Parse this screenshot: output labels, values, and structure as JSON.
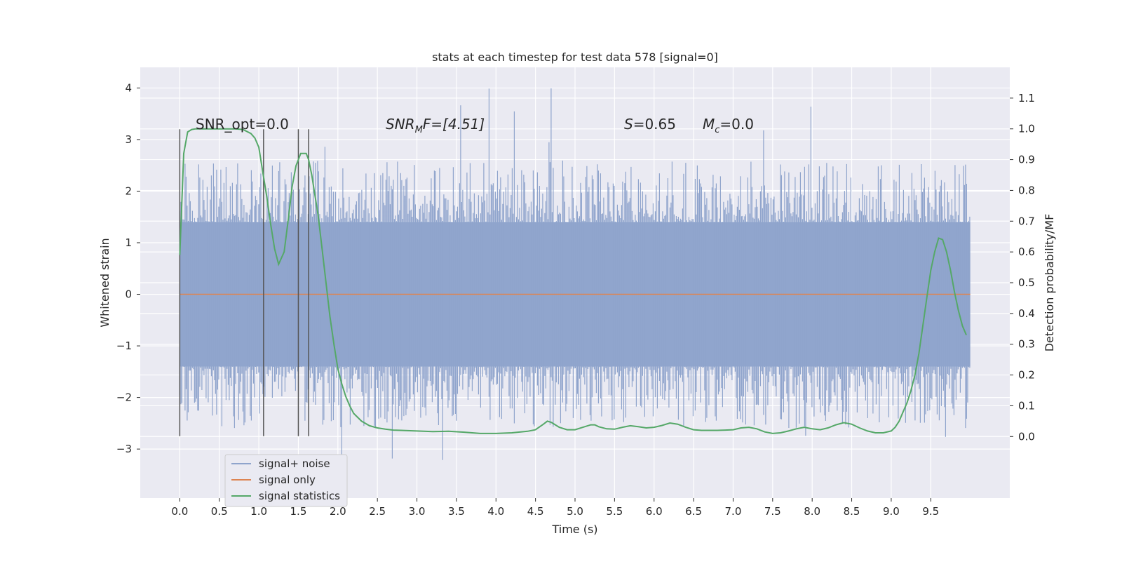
{
  "chart_data": {
    "type": "line",
    "title": "stats at each timestep for test data 578 [signal=0]",
    "xlabel": "Time (s)",
    "ylabel": "Whitened strain",
    "ylabel_right": "Detection probability/MF",
    "xlim": [
      -0.5,
      10.5
    ],
    "ylim": [
      -3.95,
      4.4
    ],
    "ylim_right": [
      -0.2,
      1.2
    ],
    "xticks": [
      0.0,
      0.5,
      1.0,
      1.5,
      2.0,
      2.5,
      3.0,
      3.5,
      4.0,
      4.5,
      5.0,
      5.5,
      6.0,
      6.5,
      7.0,
      7.5,
      8.0,
      8.5,
      9.0,
      9.5
    ],
    "yticks": [
      -3,
      -2,
      -1,
      0,
      1,
      2,
      3,
      4
    ],
    "yticks_right": [
      0.0,
      0.1,
      0.2,
      0.3,
      0.4,
      0.5,
      0.6,
      0.7,
      0.8,
      0.9,
      1.0,
      1.1
    ],
    "grid": true,
    "legend_placement": "lower-left",
    "annotations": {
      "snr_opt": "SNR_opt=0.0",
      "snr_mf_prefix": "SNR",
      "snr_mf_sub": "M",
      "snr_mf_suffix": "F=[4.51]",
      "s_var": "S",
      "s_value": "=0.65",
      "mc_var": "M",
      "mc_sub": "c",
      "mc_value": "=0.0"
    },
    "vertical_markers_x": [
      0.0,
      1.06,
      1.5,
      1.63
    ],
    "vertical_markers_yrange": [
      -2.75,
      3.2
    ],
    "series": [
      {
        "name": "signal+ noise",
        "color": "#8fa4cc",
        "axis": "left",
        "style": "dense noise",
        "x_range": [
          0.0,
          10.0
        ],
        "core_band": [
          -1.4,
          1.4
        ],
        "typical_peaks": [
          -2.6,
          2.6
        ],
        "extreme_peaks": [
          -3.6,
          4.05
        ]
      },
      {
        "name": "signal only",
        "color": "#dd8452",
        "axis": "left",
        "x": [
          0.0,
          10.0
        ],
        "y": [
          0.0,
          0.0
        ]
      },
      {
        "name": "signal statistics",
        "color": "#55a868",
        "axis": "right",
        "x": [
          0.0,
          0.05,
          0.1,
          0.15,
          0.2,
          0.3,
          0.4,
          0.5,
          0.6,
          0.7,
          0.8,
          0.9,
          0.95,
          1.0,
          1.05,
          1.1,
          1.15,
          1.2,
          1.25,
          1.32,
          1.38,
          1.42,
          1.47,
          1.5,
          1.53,
          1.57,
          1.6,
          1.63,
          1.67,
          1.7,
          1.75,
          1.8,
          1.85,
          1.9,
          1.95,
          2.0,
          2.05,
          2.1,
          2.15,
          2.2,
          2.3,
          2.4,
          2.5,
          2.6,
          2.7,
          2.8,
          3.0,
          3.2,
          3.4,
          3.6,
          3.8,
          4.0,
          4.2,
          4.4,
          4.5,
          4.6,
          4.65,
          4.7,
          4.8,
          4.9,
          5.0,
          5.1,
          5.2,
          5.25,
          5.3,
          5.4,
          5.5,
          5.6,
          5.7,
          5.8,
          5.9,
          6.0,
          6.1,
          6.2,
          6.3,
          6.4,
          6.5,
          6.6,
          6.7,
          6.8,
          6.9,
          7.0,
          7.1,
          7.2,
          7.3,
          7.4,
          7.5,
          7.6,
          7.7,
          7.8,
          7.9,
          8.0,
          8.1,
          8.2,
          8.3,
          8.4,
          8.5,
          8.6,
          8.7,
          8.8,
          8.9,
          9.0,
          9.05,
          9.1,
          9.15,
          9.2,
          9.25,
          9.3,
          9.35,
          9.4,
          9.45,
          9.5,
          9.55,
          9.6,
          9.65,
          9.7,
          9.75,
          9.8,
          9.85,
          9.9,
          9.95
        ],
        "y": [
          0.59,
          0.92,
          0.99,
          0.998,
          1.0,
          1.0,
          1.0,
          1.0,
          1.0,
          1.0,
          0.998,
          0.985,
          0.97,
          0.94,
          0.86,
          0.78,
          0.69,
          0.61,
          0.56,
          0.6,
          0.72,
          0.81,
          0.88,
          0.9,
          0.92,
          0.92,
          0.92,
          0.9,
          0.85,
          0.8,
          0.72,
          0.61,
          0.5,
          0.39,
          0.3,
          0.22,
          0.17,
          0.13,
          0.1,
          0.075,
          0.05,
          0.035,
          0.028,
          0.024,
          0.021,
          0.02,
          0.018,
          0.016,
          0.017,
          0.014,
          0.01,
          0.01,
          0.012,
          0.017,
          0.022,
          0.04,
          0.05,
          0.046,
          0.03,
          0.022,
          0.022,
          0.03,
          0.038,
          0.038,
          0.032,
          0.025,
          0.024,
          0.03,
          0.035,
          0.032,
          0.028,
          0.03,
          0.036,
          0.044,
          0.04,
          0.03,
          0.022,
          0.02,
          0.02,
          0.02,
          0.021,
          0.022,
          0.028,
          0.03,
          0.025,
          0.015,
          0.01,
          0.012,
          0.018,
          0.025,
          0.03,
          0.025,
          0.022,
          0.028,
          0.038,
          0.045,
          0.04,
          0.028,
          0.018,
          0.012,
          0.012,
          0.018,
          0.03,
          0.05,
          0.08,
          0.11,
          0.15,
          0.2,
          0.27,
          0.36,
          0.45,
          0.54,
          0.6,
          0.645,
          0.64,
          0.6,
          0.54,
          0.47,
          0.41,
          0.36,
          0.33
        ]
      }
    ]
  }
}
